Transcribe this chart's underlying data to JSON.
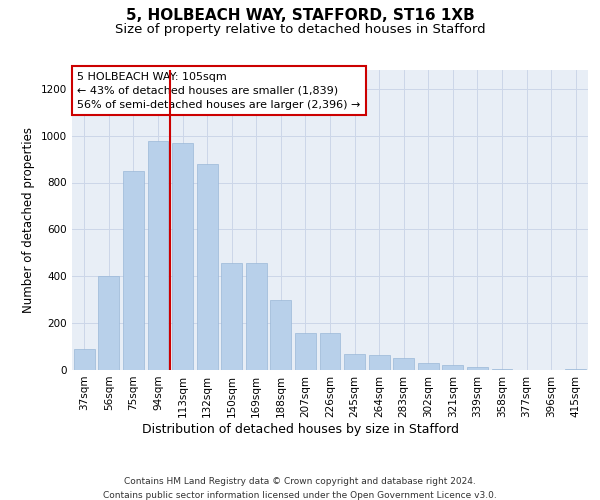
{
  "title1": "5, HOLBEACH WAY, STAFFORD, ST16 1XB",
  "title2": "Size of property relative to detached houses in Stafford",
  "xlabel": "Distribution of detached houses by size in Stafford",
  "ylabel": "Number of detached properties",
  "categories": [
    "37sqm",
    "56sqm",
    "75sqm",
    "94sqm",
    "113sqm",
    "132sqm",
    "150sqm",
    "169sqm",
    "188sqm",
    "207sqm",
    "226sqm",
    "245sqm",
    "264sqm",
    "283sqm",
    "302sqm",
    "321sqm",
    "339sqm",
    "358sqm",
    "377sqm",
    "396sqm",
    "415sqm"
  ],
  "values": [
    90,
    400,
    850,
    975,
    970,
    880,
    455,
    455,
    300,
    160,
    160,
    70,
    65,
    50,
    30,
    20,
    12,
    3,
    0,
    0,
    5
  ],
  "bar_color": "#b8d0ea",
  "bar_edge_color": "#9ab8d8",
  "vline_x_index": 4,
  "vline_color": "#cc0000",
  "annotation_line1": "5 HOLBEACH WAY: 105sqm",
  "annotation_line2": "← 43% of detached houses are smaller (1,839)",
  "annotation_line3": "56% of semi-detached houses are larger (2,396) →",
  "annotation_box_edge_color": "#cc0000",
  "footer": "Contains HM Land Registry data © Crown copyright and database right 2024.\nContains public sector information licensed under the Open Government Licence v3.0.",
  "ylim": [
    0,
    1280
  ],
  "yticks": [
    0,
    200,
    400,
    600,
    800,
    1000,
    1200
  ],
  "grid_color": "#ccd6e8",
  "bg_color": "#e8eef6",
  "title1_fontsize": 11,
  "title2_fontsize": 9.5,
  "xlabel_fontsize": 9,
  "ylabel_fontsize": 8.5,
  "tick_fontsize": 7.5,
  "annotation_fontsize": 8,
  "footer_fontsize": 6.5
}
